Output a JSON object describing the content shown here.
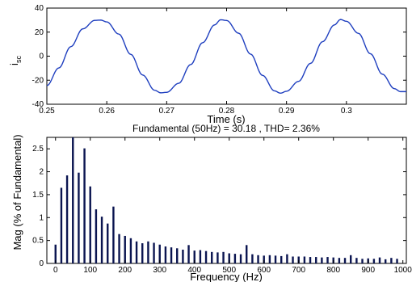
{
  "chart_data": [
    {
      "type": "line",
      "xlabel": "Time (s)",
      "ylabel_main": "i",
      "ylabel_sub": "sc",
      "xlim": [
        0.25,
        0.31
      ],
      "ylim": [
        -40,
        40
      ],
      "xticks": [
        0.25,
        0.26,
        0.27,
        0.28,
        0.29,
        0.3
      ],
      "xtick_labels": [
        "0.25",
        "0.26",
        "0.27",
        "0.28",
        "0.29",
        "0.3"
      ],
      "yticks": [
        -40,
        -20,
        0,
        20,
        40
      ],
      "ytick_labels": [
        "-40",
        "-20",
        "0",
        "20",
        "40"
      ],
      "series": [
        {
          "color": "#1f3fbf",
          "x": [
            0.25,
            0.252,
            0.254,
            0.256,
            0.258,
            0.259,
            0.26,
            0.262,
            0.264,
            0.266,
            0.268,
            0.269,
            0.27,
            0.272,
            0.274,
            0.276,
            0.278,
            0.279,
            0.28,
            0.282,
            0.284,
            0.286,
            0.288,
            0.289,
            0.29,
            0.292,
            0.294,
            0.296,
            0.298,
            0.299,
            0.3,
            0.302,
            0.304,
            0.306,
            0.308,
            0.309
          ],
          "y": [
            -24.5,
            -9.8,
            7.9,
            22.7,
            29.8,
            30.0,
            28.5,
            18.4,
            1.5,
            -15.7,
            -28.4,
            -30.5,
            -30.1,
            -22.6,
            -7.0,
            11.2,
            26.0,
            30.3,
            29.7,
            19.1,
            1.7,
            -16.0,
            -28.9,
            -30.8,
            -29.2,
            -21.0,
            -6.0,
            12.0,
            26.0,
            30.5,
            29.0,
            19.0,
            2.0,
            -15.0,
            -27.0,
            -29.5
          ]
        }
      ]
    },
    {
      "type": "bar",
      "title": "Fundamental (50Hz) = 30.18 , THD= 2.36%",
      "xlabel": "Frequency (Hz)",
      "ylabel": "Mag (% of Fundamental)",
      "xlim": [
        -25,
        1010
      ],
      "ylim": [
        0,
        2.75
      ],
      "xticks": [
        0,
        100,
        200,
        300,
        400,
        500,
        600,
        700,
        800,
        900,
        1000
      ],
      "xtick_labels": [
        "0",
        "100",
        "200",
        "300",
        "400",
        "500",
        "600",
        "700",
        "800",
        "900",
        "1000"
      ],
      "yticks": [
        0,
        0.5,
        1,
        1.5,
        2,
        2.5
      ],
      "ytick_labels": [
        "0",
        "0.5",
        "1",
        "1.5",
        "2",
        "2.5"
      ],
      "bar_color": "#0a1450",
      "x": [
        0,
        16.7,
        33.3,
        50,
        66.7,
        83.3,
        100,
        116.7,
        133.3,
        150,
        166.7,
        183.3,
        200,
        216.7,
        233.3,
        250,
        266.7,
        283.3,
        300,
        316.7,
        333.3,
        350,
        366.7,
        383.3,
        400,
        416.7,
        433.3,
        450,
        466.7,
        483.3,
        500,
        516.7,
        533.3,
        550,
        566.7,
        583.3,
        600,
        616.7,
        633.3,
        650,
        666.7,
        683.3,
        700,
        716.7,
        733.3,
        750,
        766.7,
        783.3,
        800,
        816.7,
        833.3,
        850,
        866.7,
        883.3,
        900,
        916.7,
        933.3,
        950,
        966.7,
        983.3
      ],
      "values": [
        0.41,
        1.65,
        1.92,
        2.75,
        1.98,
        2.51,
        1.68,
        1.18,
        1.02,
        0.87,
        1.24,
        0.64,
        0.6,
        0.55,
        0.48,
        0.44,
        0.48,
        0.45,
        0.41,
        0.37,
        0.35,
        0.33,
        0.3,
        0.4,
        0.28,
        0.29,
        0.27,
        0.25,
        0.24,
        0.25,
        0.22,
        0.21,
        0.2,
        0.4,
        0.2,
        0.18,
        0.17,
        0.18,
        0.17,
        0.16,
        0.2,
        0.15,
        0.15,
        0.15,
        0.14,
        0.14,
        0.13,
        0.14,
        0.13,
        0.12,
        0.12,
        0.18,
        0.12,
        0.1,
        0.11,
        0.1,
        0.13,
        0.09,
        0.12,
        0.1
      ]
    }
  ]
}
